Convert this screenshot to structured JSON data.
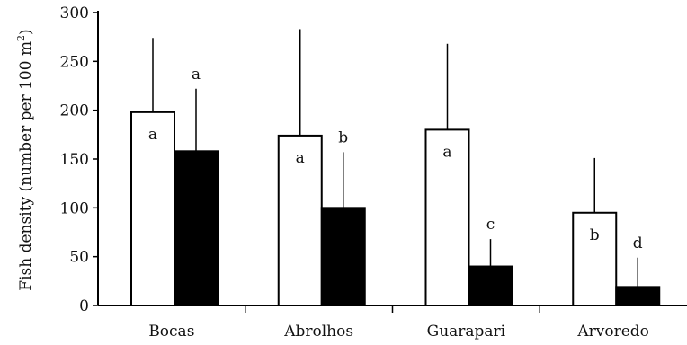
{
  "chart_data": {
    "type": "bar",
    "categories": [
      "Bocas",
      "Abrolhos",
      "Guarapari",
      "Arvoredo"
    ],
    "ylabel_main": "Fish density (number per 100 m",
    "ylabel_exp": "2",
    "ylabel_close": ")",
    "ylim": [
      0,
      300
    ],
    "yticks": [
      0,
      50,
      100,
      150,
      200,
      250,
      300
    ],
    "grid": false,
    "series": [
      {
        "fill": "#ffffff",
        "values": [
          198,
          174,
          180,
          95
        ],
        "error_upper": [
          274,
          283,
          268,
          151
        ],
        "sig_letters": [
          "a",
          "a",
          "a",
          "b"
        ]
      },
      {
        "fill": "#000000",
        "values": [
          158,
          100,
          40,
          19
        ],
        "error_upper": [
          222,
          157,
          68,
          49
        ],
        "sig_letters": [
          "a",
          "b",
          "c",
          "d"
        ]
      }
    ]
  }
}
